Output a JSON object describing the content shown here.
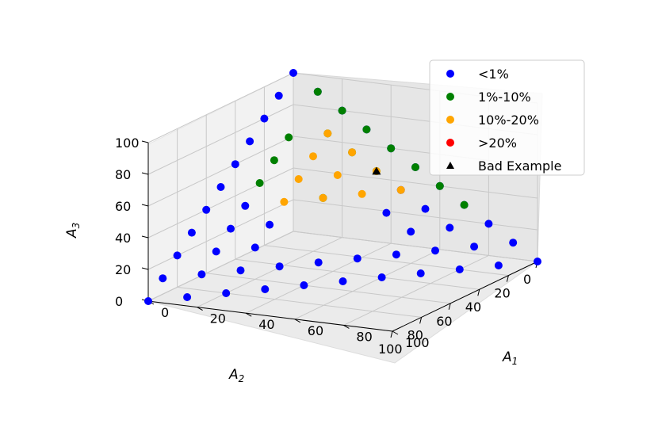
{
  "chart_data": {
    "type": "scatter",
    "dimensions": 3,
    "title": "",
    "axes": {
      "x": {
        "label": "A",
        "label_sub": "1",
        "ticks": [
          "0",
          "20",
          "40",
          "60",
          "80",
          "100"
        ],
        "lim": [
          0,
          100
        ]
      },
      "y": {
        "label": "A",
        "label_sub": "2",
        "ticks": [
          "0",
          "20",
          "40",
          "60",
          "80",
          "100"
        ],
        "lim": [
          0,
          100
        ]
      },
      "z": {
        "label": "A",
        "label_sub": "3",
        "ticks": [
          "0",
          "20",
          "40",
          "60",
          "80",
          "100"
        ],
        "lim": [
          0,
          100
        ]
      }
    },
    "grid": true,
    "legend": {
      "placement": "upper-right",
      "entries": [
        {
          "label": "<1%",
          "color": "#0000ff",
          "marker": "circle"
        },
        {
          "label": "1%-10%",
          "color": "#008000",
          "marker": "circle"
        },
        {
          "label": "10%-20%",
          "color": "#ffa500",
          "marker": "circle"
        },
        {
          "label": ">20%",
          "color": "#ff0000",
          "marker": "circle"
        },
        {
          "label": "Bad Example",
          "color": "#000000",
          "marker": "triangle"
        }
      ]
    },
    "series": [
      {
        "name": "<1%",
        "color": "#0000ff",
        "marker": "circle",
        "points": [
          [
            0,
            100,
            0
          ],
          [
            10,
            90,
            0
          ],
          [
            20,
            80,
            0
          ],
          [
            30,
            70,
            0
          ],
          [
            40,
            60,
            0
          ],
          [
            50,
            50,
            0
          ],
          [
            60,
            40,
            0
          ],
          [
            70,
            30,
            0
          ],
          [
            80,
            20,
            0
          ],
          [
            90,
            10,
            0
          ],
          [
            100,
            0,
            0
          ],
          [
            0,
            90,
            10
          ],
          [
            90,
            0,
            10
          ],
          [
            0,
            80,
            20
          ],
          [
            80,
            0,
            20
          ],
          [
            0,
            70,
            30
          ],
          [
            70,
            0,
            30
          ],
          [
            0,
            60,
            40
          ],
          [
            60,
            0,
            40
          ],
          [
            0,
            50,
            50
          ],
          [
            50,
            0,
            50
          ],
          [
            0,
            40,
            60
          ],
          [
            40,
            0,
            60
          ],
          [
            0,
            30,
            70
          ],
          [
            30,
            0,
            70
          ],
          [
            0,
            20,
            80
          ],
          [
            20,
            0,
            80
          ],
          [
            0,
            10,
            90
          ],
          [
            10,
            0,
            90
          ],
          [
            0,
            0,
            100
          ],
          [
            10,
            80,
            10
          ],
          [
            20,
            70,
            10
          ],
          [
            30,
            60,
            10
          ],
          [
            40,
            50,
            10
          ],
          [
            50,
            40,
            10
          ],
          [
            60,
            30,
            10
          ],
          [
            70,
            20,
            10
          ],
          [
            80,
            10,
            10
          ],
          [
            10,
            70,
            20
          ],
          [
            70,
            10,
            20
          ],
          [
            10,
            60,
            30
          ],
          [
            60,
            10,
            30
          ],
          [
            10,
            50,
            40
          ],
          [
            50,
            10,
            40
          ],
          [
            20,
            60,
            20
          ],
          [
            60,
            20,
            20
          ],
          [
            20,
            50,
            30
          ],
          [
            50,
            20,
            30
          ]
        ]
      },
      {
        "name": "1%-10%",
        "color": "#008000",
        "marker": "circle",
        "points": [
          [
            10,
            0,
            90
          ],
          [
            20,
            0,
            80
          ],
          [
            30,
            0,
            70
          ],
          [
            40,
            0,
            60
          ],
          [
            50,
            0,
            50
          ],
          [
            60,
            0,
            40
          ],
          [
            70,
            0,
            30
          ],
          [
            10,
            40,
            50
          ],
          [
            10,
            30,
            60
          ],
          [
            10,
            20,
            70
          ],
          [
            40,
            10,
            50
          ],
          [
            30,
            10,
            60
          ],
          [
            20,
            10,
            70
          ],
          [
            30,
            30,
            40
          ]
        ]
      },
      {
        "name": "10%-20%",
        "color": "#ffa500",
        "marker": "circle",
        "points": [
          [
            20,
            10,
            70
          ],
          [
            30,
            10,
            60
          ],
          [
            40,
            10,
            50
          ],
          [
            50,
            10,
            40
          ],
          [
            20,
            20,
            60
          ],
          [
            30,
            20,
            50
          ],
          [
            40,
            20,
            40
          ],
          [
            20,
            30,
            50
          ],
          [
            30,
            30,
            40
          ],
          [
            20,
            40,
            40
          ]
        ]
      },
      {
        "name": ">20%",
        "color": "#ff0000",
        "marker": "circle",
        "points": []
      },
      {
        "name": "Bad Example",
        "color": "#000000",
        "marker": "triangle",
        "points": [
          [
            40,
            10,
            50
          ]
        ]
      }
    ]
  }
}
